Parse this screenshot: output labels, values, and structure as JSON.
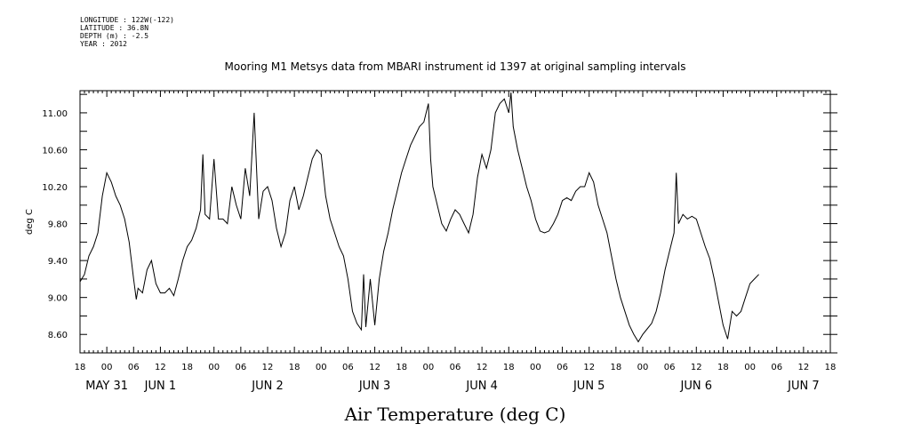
{
  "header": {
    "meta_lines": [
      "LONGITUDE : 122W(-122)",
      "LATITUDE : 36.8N",
      "DEPTH (m) : -2.5",
      "YEAR : 2012"
    ],
    "title": "Mooring M1 Metsys data from MBARI instrument id 1397 at original sampling intervals"
  },
  "chart_data": {
    "type": "line",
    "title": "Mooring M1 Metsys data from MBARI instrument id 1397 at original sampling intervals",
    "xlabel": "Air Temperature (deg C)",
    "ylabel": "deg C",
    "xlim_hours": [
      0,
      168
    ],
    "ylim": [
      8.4,
      11.24
    ],
    "yticks": [
      8.6,
      9.0,
      9.4,
      9.8,
      10.2,
      10.6,
      11.0
    ],
    "ytick_labels": [
      "8.60",
      "9.00",
      "9.40",
      "9.80",
      "10.20",
      "10.60",
      "11.00"
    ],
    "xtick_hour_labels": [
      "18",
      "00",
      "06",
      "12",
      "18",
      "00",
      "06",
      "12",
      "18",
      "00",
      "06",
      "12",
      "18",
      "00",
      "06",
      "12",
      "18",
      "00",
      "06",
      "12",
      "18",
      "00",
      "06",
      "12",
      "18",
      "00",
      "06",
      "12",
      "18"
    ],
    "date_labels": [
      {
        "text": "MAY 31",
        "hour": 6
      },
      {
        "text": "JUN  1",
        "hour": 18
      },
      {
        "text": "JUN  2",
        "hour": 42
      },
      {
        "text": "JUN  3",
        "hour": 66
      },
      {
        "text": "JUN  4",
        "hour": 90
      },
      {
        "text": "JUN  5",
        "hour": 114
      },
      {
        "text": "JUN  6",
        "hour": 138
      },
      {
        "text": "JUN  7",
        "hour": 162
      }
    ],
    "x_start": "2012-05-30 18:00",
    "x_units": "hours since 2012-05-30 18:00",
    "series": [
      {
        "name": "Air Temperature",
        "points": [
          [
            0,
            9.17
          ],
          [
            1,
            9.25
          ],
          [
            2,
            9.45
          ],
          [
            3,
            9.55
          ],
          [
            4,
            9.7
          ],
          [
            5,
            10.1
          ],
          [
            6,
            10.35
          ],
          [
            7,
            10.25
          ],
          [
            8,
            10.1
          ],
          [
            9,
            10.0
          ],
          [
            10,
            9.85
          ],
          [
            11,
            9.6
          ],
          [
            12,
            9.2
          ],
          [
            12.6,
            8.98
          ],
          [
            13,
            9.1
          ],
          [
            14,
            9.05
          ],
          [
            15,
            9.3
          ],
          [
            16,
            9.4
          ],
          [
            17,
            9.15
          ],
          [
            18,
            9.05
          ],
          [
            19,
            9.05
          ],
          [
            20,
            9.1
          ],
          [
            21,
            9.02
          ],
          [
            22,
            9.2
          ],
          [
            23,
            9.4
          ],
          [
            24,
            9.55
          ],
          [
            25,
            9.62
          ],
          [
            26,
            9.75
          ],
          [
            27,
            9.95
          ],
          [
            27.5,
            10.55
          ],
          [
            28,
            9.9
          ],
          [
            29,
            9.85
          ],
          [
            30,
            10.5
          ],
          [
            31,
            9.85
          ],
          [
            32,
            9.85
          ],
          [
            33,
            9.8
          ],
          [
            34,
            10.2
          ],
          [
            35,
            10.0
          ],
          [
            36,
            9.85
          ],
          [
            37,
            10.4
          ],
          [
            38,
            10.1
          ],
          [
            39,
            11.0
          ],
          [
            40,
            9.85
          ],
          [
            41,
            10.15
          ],
          [
            42,
            10.2
          ],
          [
            43,
            10.05
          ],
          [
            44,
            9.75
          ],
          [
            45,
            9.55
          ],
          [
            46,
            9.7
          ],
          [
            47,
            10.05
          ],
          [
            48,
            10.2
          ],
          [
            49,
            9.95
          ],
          [
            50,
            10.1
          ],
          [
            51,
            10.3
          ],
          [
            52,
            10.5
          ],
          [
            53,
            10.6
          ],
          [
            54,
            10.55
          ],
          [
            55,
            10.1
          ],
          [
            56,
            9.85
          ],
          [
            57,
            9.7
          ],
          [
            58,
            9.55
          ],
          [
            59,
            9.45
          ],
          [
            60,
            9.2
          ],
          [
            61,
            8.85
          ],
          [
            62,
            8.72
          ],
          [
            63,
            8.65
          ],
          [
            63.5,
            9.25
          ],
          [
            64,
            8.68
          ],
          [
            65,
            9.2
          ],
          [
            66,
            8.7
          ],
          [
            67,
            9.2
          ],
          [
            68,
            9.5
          ],
          [
            69,
            9.7
          ],
          [
            70,
            9.95
          ],
          [
            71,
            10.15
          ],
          [
            72,
            10.35
          ],
          [
            73,
            10.5
          ],
          [
            74,
            10.65
          ],
          [
            75,
            10.75
          ],
          [
            76,
            10.85
          ],
          [
            77,
            10.9
          ],
          [
            78,
            11.1
          ],
          [
            78.5,
            10.5
          ],
          [
            79,
            10.2
          ],
          [
            80,
            10.0
          ],
          [
            81,
            9.8
          ],
          [
            82,
            9.72
          ],
          [
            83,
            9.85
          ],
          [
            84,
            9.95
          ],
          [
            85,
            9.9
          ],
          [
            86,
            9.8
          ],
          [
            87,
            9.7
          ],
          [
            88,
            9.9
          ],
          [
            89,
            10.3
          ],
          [
            90,
            10.55
          ],
          [
            91,
            10.4
          ],
          [
            92,
            10.6
          ],
          [
            93,
            11.0
          ],
          [
            94,
            11.1
          ],
          [
            95,
            11.15
          ],
          [
            96,
            11.0
          ],
          [
            96.5,
            11.22
          ],
          [
            97,
            10.85
          ],
          [
            98,
            10.6
          ],
          [
            99,
            10.4
          ],
          [
            100,
            10.2
          ],
          [
            101,
            10.05
          ],
          [
            102,
            9.85
          ],
          [
            103,
            9.72
          ],
          [
            104,
            9.7
          ],
          [
            105,
            9.72
          ],
          [
            106,
            9.8
          ],
          [
            107,
            9.9
          ],
          [
            108,
            10.05
          ],
          [
            109,
            10.08
          ],
          [
            110,
            10.05
          ],
          [
            111,
            10.15
          ],
          [
            112,
            10.2
          ],
          [
            113,
            10.2
          ],
          [
            114,
            10.35
          ],
          [
            115,
            10.25
          ],
          [
            116,
            10.0
          ],
          [
            117,
            9.85
          ],
          [
            118,
            9.7
          ],
          [
            119,
            9.45
          ],
          [
            120,
            9.2
          ],
          [
            121,
            9.0
          ],
          [
            122,
            8.85
          ],
          [
            123,
            8.7
          ],
          [
            124,
            8.6
          ],
          [
            125,
            8.52
          ],
          [
            126,
            8.6
          ],
          [
            127,
            8.66
          ],
          [
            128,
            8.72
          ],
          [
            129,
            8.85
          ],
          [
            130,
            9.05
          ],
          [
            131,
            9.3
          ],
          [
            132,
            9.5
          ],
          [
            133,
            9.7
          ],
          [
            133.5,
            10.35
          ],
          [
            134,
            9.8
          ],
          [
            135,
            9.9
          ],
          [
            136,
            9.85
          ],
          [
            137,
            9.88
          ],
          [
            138,
            9.85
          ],
          [
            139,
            9.7
          ],
          [
            140,
            9.55
          ],
          [
            141,
            9.42
          ],
          [
            142,
            9.2
          ],
          [
            143,
            8.95
          ],
          [
            144,
            8.7
          ],
          [
            145,
            8.55
          ],
          [
            146,
            8.85
          ],
          [
            147,
            8.8
          ],
          [
            148,
            8.85
          ],
          [
            149,
            9.0
          ],
          [
            150,
            9.15
          ],
          [
            151,
            9.2
          ],
          [
            152,
            9.25
          ]
        ]
      }
    ]
  }
}
